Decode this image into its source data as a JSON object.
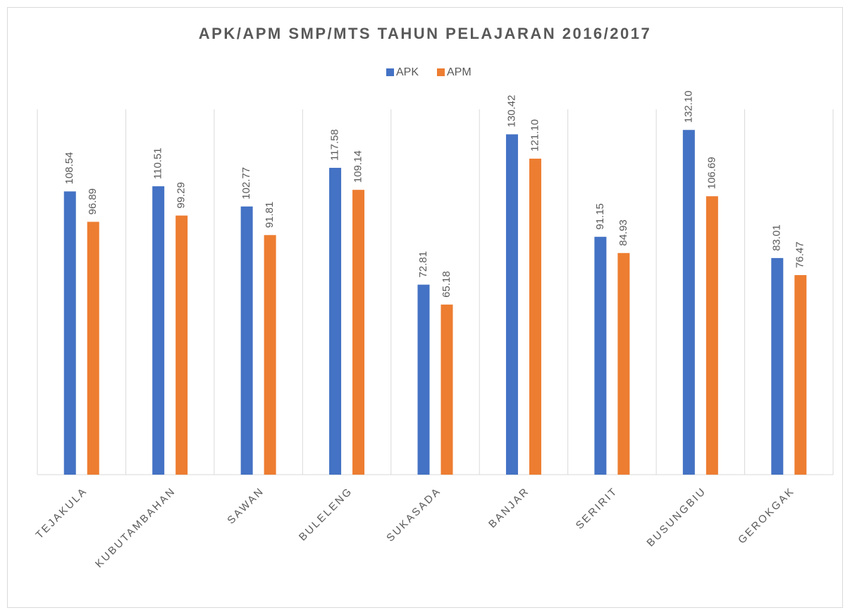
{
  "chart_data": {
    "type": "bar",
    "title": "APK/APM SMP/MTS TAHUN PELAJARAN 2016/2017",
    "categories": [
      "TEJAKULA",
      "KUBUTAMBAHAN",
      "SAWAN",
      "BULELENG",
      "SUKASADA",
      "BANJAR",
      "SERIRIT",
      "BUSUNGBIU",
      "GEROKGAK"
    ],
    "series": [
      {
        "name": "APK",
        "color": "#4472c4",
        "values": [
          108.54,
          110.51,
          102.77,
          117.58,
          72.81,
          130.42,
          91.15,
          132.1,
          83.01
        ],
        "value_labels": [
          "108.54",
          "110.51",
          "102.77",
          "117.58",
          "72.81",
          "130.42",
          "91.15",
          "132.10",
          "83.01"
        ]
      },
      {
        "name": "APM",
        "color": "#ed7d31",
        "values": [
          96.89,
          99.29,
          91.81,
          109.14,
          65.18,
          121.1,
          84.93,
          106.69,
          76.47
        ],
        "value_labels": [
          "96.89",
          "99.29",
          "91.81",
          "109.14",
          "65.18",
          "121.10",
          "84.93",
          "106.69",
          "76.47"
        ]
      }
    ],
    "ylim": [
      0,
      140
    ],
    "legend": "top"
  }
}
